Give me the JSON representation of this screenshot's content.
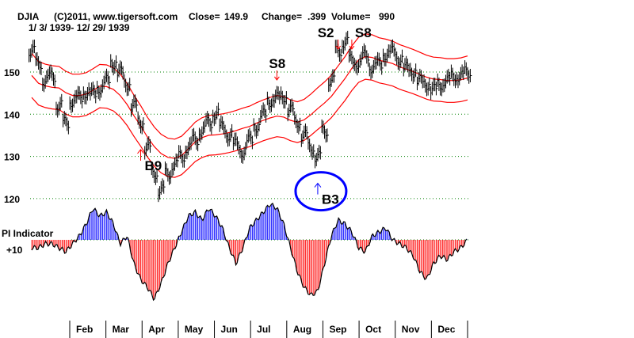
{
  "header": {
    "symbol": "DJIA",
    "copyright": "(C)2011, www.tigersoft.com",
    "close_label": "Close=",
    "close_value": "149.9",
    "change_label": "Change=",
    "change_value": ".399",
    "volume_label": "Volume=",
    "volume_value": "990",
    "date_range": "1/ 3/ 1939- 12/ 29/ 1939"
  },
  "colors": {
    "bands": "#ff0000",
    "grid": "#008000",
    "positive": "#0000ff",
    "negative": "#ff0000",
    "circle": "#0000ff"
  },
  "chart_data": {
    "type": "line",
    "title": "DJIA 1939",
    "ylim": [
      115,
      160
    ],
    "yticks": [
      "150",
      "140",
      "130",
      "120"
    ],
    "ytick_values": [
      150,
      140,
      130,
      120
    ],
    "months": [
      "Feb",
      "Mar",
      "Apr",
      "May",
      "Jun",
      "Jul",
      "Aug",
      "Sep",
      "Oct",
      "Nov",
      "Dec"
    ],
    "closes": [
      155,
      152,
      148,
      149,
      142,
      138,
      143,
      144,
      145,
      145,
      146,
      148,
      152,
      150,
      147,
      142,
      138,
      132,
      126,
      122,
      126,
      128,
      130,
      132,
      134,
      136,
      138,
      140,
      137,
      135,
      133,
      131,
      134,
      137,
      140,
      143,
      144,
      144,
      141,
      138,
      135,
      132,
      130,
      136,
      148,
      155,
      157,
      153,
      152,
      154,
      151,
      152,
      154,
      155,
      153,
      151,
      150,
      148,
      147,
      146,
      147,
      148,
      149,
      149,
      150
    ],
    "indicator_label": "PI Indicator",
    "indicator_zero_label": "+10",
    "indicator": [
      -10,
      -10,
      -5,
      -5,
      -10,
      -15,
      -5,
      5,
      20,
      40,
      30,
      35,
      20,
      -5,
      5,
      -30,
      -50,
      -60,
      -75,
      -55,
      -30,
      -10,
      10,
      30,
      35,
      25,
      40,
      30,
      15,
      -10,
      -30,
      -10,
      15,
      25,
      35,
      45,
      40,
      20,
      -10,
      -40,
      -60,
      -70,
      -65,
      -30,
      5,
      25,
      20,
      10,
      -10,
      -15,
      5,
      10,
      15,
      0,
      -5,
      -10,
      -20,
      -40,
      -50,
      -30,
      -20,
      -25,
      -15,
      -10,
      0
    ],
    "signals": [
      {
        "label": "B9",
        "index": 16,
        "type": "buy"
      },
      {
        "label": "S8",
        "index": 36,
        "type": "sell"
      },
      {
        "label": "B3",
        "index": 42,
        "type": "buy"
      },
      {
        "label": "S2",
        "index": 45,
        "type": "sell"
      },
      {
        "label": "S8",
        "index": 47,
        "type": "sell"
      }
    ]
  }
}
